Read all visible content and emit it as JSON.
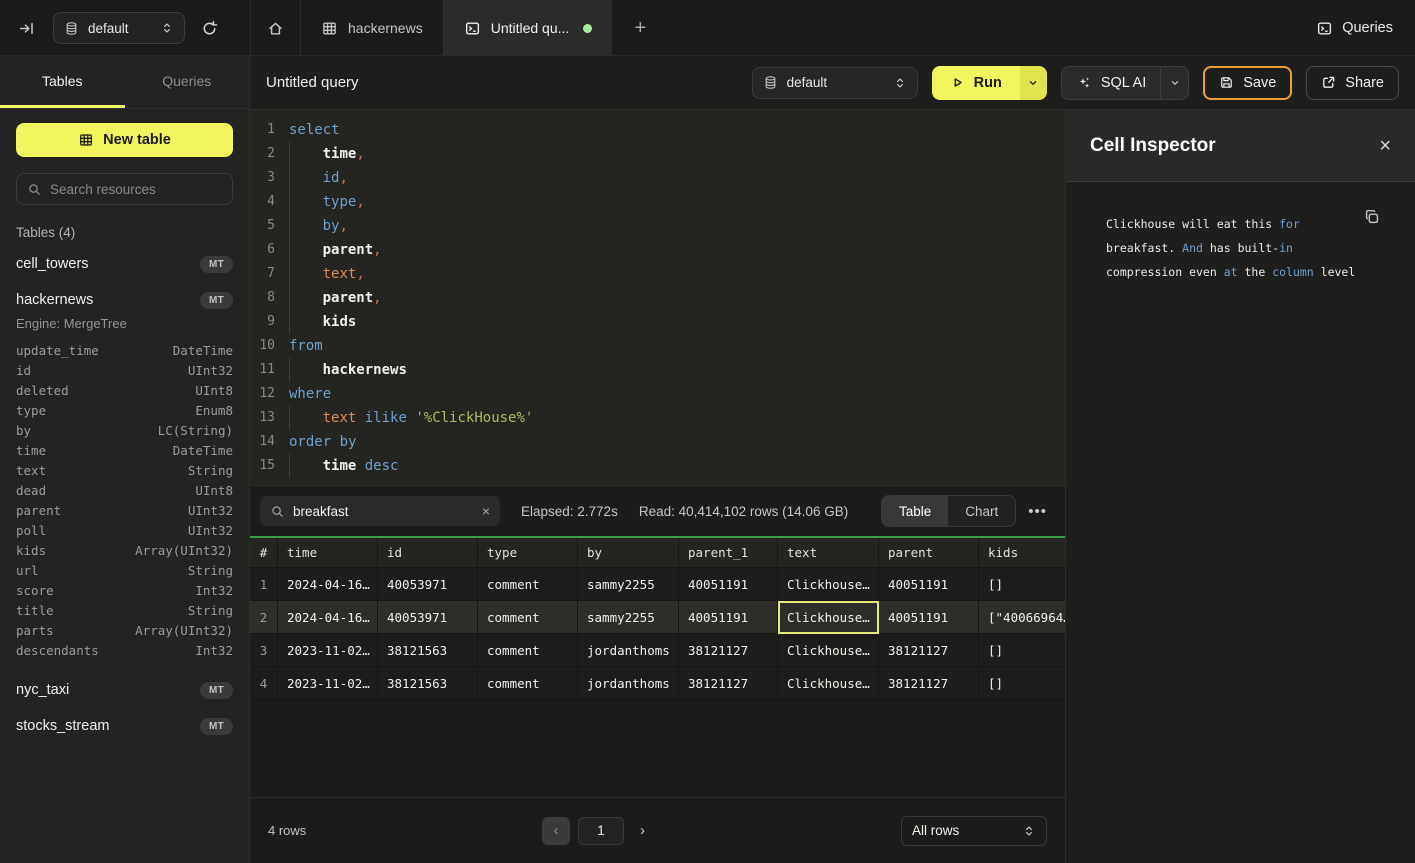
{
  "colors": {
    "accent_yellow": "#F2F65E",
    "accent_amber": "#E9A23B",
    "table_header_line_green": "#3F9B45",
    "unsaved_dot_green": "#A7E8A5",
    "selected_cell_yellow": "#E6EA7C",
    "syntax_keyword_blue": "#6FA0CE",
    "syntax_string_green": "#A6BD62",
    "syntax_identifier_orange": "#DC8A5C"
  },
  "topbar": {
    "database_selector": {
      "value": "default"
    },
    "tabs": [
      {
        "name": "home",
        "icon": "home",
        "label": ""
      },
      {
        "name": "hackernews",
        "icon": "table",
        "label": "hackernews"
      },
      {
        "name": "untitled-query",
        "icon": "terminal",
        "label": "Untitled qu...",
        "active": true,
        "unsaved": true
      }
    ],
    "new_tab_label": "+",
    "queries_label": "Queries"
  },
  "sidebar": {
    "tabs": [
      {
        "label": "Tables",
        "active": true
      },
      {
        "label": "Queries",
        "active": false
      }
    ],
    "new_table_label": "New table",
    "search_placeholder": "Search resources",
    "section_label": "Tables (4)",
    "tables": [
      {
        "name": "cell_towers",
        "badge": "MT"
      },
      {
        "name": "hackernews",
        "badge": "MT",
        "expanded": true,
        "engine": "Engine: MergeTree",
        "columns": [
          {
            "name": "update_time",
            "type": "DateTime"
          },
          {
            "name": "id",
            "type": "UInt32"
          },
          {
            "name": "deleted",
            "type": "UInt8"
          },
          {
            "name": "type",
            "type": "Enum8"
          },
          {
            "name": "by",
            "type": "LC(String)"
          },
          {
            "name": "time",
            "type": "DateTime"
          },
          {
            "name": "text",
            "type": "String"
          },
          {
            "name": "dead",
            "type": "UInt8"
          },
          {
            "name": "parent",
            "type": "UInt32"
          },
          {
            "name": "poll",
            "type": "UInt32"
          },
          {
            "name": "kids",
            "type": "Array(UInt32)"
          },
          {
            "name": "url",
            "type": "String"
          },
          {
            "name": "score",
            "type": "Int32"
          },
          {
            "name": "title",
            "type": "String"
          },
          {
            "name": "parts",
            "type": "Array(UInt32)"
          },
          {
            "name": "descendants",
            "type": "Int32"
          }
        ]
      },
      {
        "name": "nyc_taxi",
        "badge": "MT"
      },
      {
        "name": "stocks_stream",
        "badge": "MT"
      }
    ]
  },
  "query_header": {
    "title": "Untitled query",
    "database_selector": {
      "value": "default"
    },
    "run_label": "Run",
    "sql_ai_label": "SQL AI",
    "save_label": "Save",
    "share_label": "Share"
  },
  "editor": {
    "lines": [
      {
        "n": "1",
        "indent": 0,
        "tokens": [
          {
            "t": "select",
            "c": "kw"
          }
        ]
      },
      {
        "n": "2",
        "indent": 1,
        "tokens": [
          {
            "t": "time",
            "c": "col"
          },
          {
            "t": ",",
            "c": "pn"
          }
        ]
      },
      {
        "n": "3",
        "indent": 1,
        "tokens": [
          {
            "t": "id",
            "c": "kw"
          },
          {
            "t": ",",
            "c": "pn"
          }
        ]
      },
      {
        "n": "4",
        "indent": 1,
        "tokens": [
          {
            "t": "type",
            "c": "kw"
          },
          {
            "t": ",",
            "c": "pn"
          }
        ]
      },
      {
        "n": "5",
        "indent": 1,
        "tokens": [
          {
            "t": "by",
            "c": "kw"
          },
          {
            "t": ",",
            "c": "pn"
          }
        ]
      },
      {
        "n": "6",
        "indent": 1,
        "tokens": [
          {
            "t": "parent",
            "c": "col"
          },
          {
            "t": ",",
            "c": "pn"
          }
        ]
      },
      {
        "n": "7",
        "indent": 1,
        "tokens": [
          {
            "t": "text",
            "c": "fn"
          },
          {
            "t": ",",
            "c": "pn"
          }
        ]
      },
      {
        "n": "8",
        "indent": 1,
        "tokens": [
          {
            "t": "parent",
            "c": "col"
          },
          {
            "t": ",",
            "c": "pn"
          }
        ]
      },
      {
        "n": "9",
        "indent": 1,
        "tokens": [
          {
            "t": "kids",
            "c": "col"
          }
        ]
      },
      {
        "n": "10",
        "indent": 0,
        "tokens": [
          {
            "t": "from",
            "c": "kw"
          }
        ]
      },
      {
        "n": "11",
        "indent": 1,
        "tokens": [
          {
            "t": "hackernews",
            "c": "col"
          }
        ]
      },
      {
        "n": "12",
        "indent": 0,
        "tokens": [
          {
            "t": "where",
            "c": "kw"
          }
        ]
      },
      {
        "n": "13",
        "indent": 1,
        "tokens": [
          {
            "t": "text",
            "c": "fn"
          },
          {
            "t": " ",
            "c": "sp"
          },
          {
            "t": "ilike",
            "c": "kw"
          },
          {
            "t": " ",
            "c": "sp"
          },
          {
            "t": "'%ClickHouse%'",
            "c": "str"
          }
        ]
      },
      {
        "n": "14",
        "indent": 0,
        "tokens": [
          {
            "t": "order by",
            "c": "kw"
          }
        ]
      },
      {
        "n": "15",
        "indent": 1,
        "tokens": [
          {
            "t": "time",
            "c": "col"
          },
          {
            "t": " ",
            "c": "sp"
          },
          {
            "t": "desc",
            "c": "kw"
          }
        ]
      }
    ]
  },
  "results": {
    "search_value": "breakfast",
    "elapsed": "Elapsed: 2.772s",
    "read": "Read: 40,414,102 rows (14.06 GB)",
    "views": [
      {
        "label": "Table",
        "active": true
      },
      {
        "label": "Chart",
        "active": false
      }
    ],
    "more_label": "•••",
    "columns": [
      "#",
      "time",
      "id",
      "type",
      "by",
      "parent_1",
      "text",
      "parent",
      "kids"
    ],
    "rows": [
      {
        "cells": [
          "1",
          "2024-04-16…",
          "40053971",
          "comment",
          "sammy2255",
          "40051191",
          "Clickhouse…",
          "40051191",
          "[]"
        ]
      },
      {
        "cells": [
          "2",
          "2024-04-16…",
          "40053971",
          "comment",
          "sammy2255",
          "40051191",
          "Clickhouse…",
          "40051191",
          "[\"40066964…"
        ],
        "selected": true,
        "selected_cell": 6
      },
      {
        "cells": [
          "3",
          "2023-11-02…",
          "38121563",
          "comment",
          "jordanthoms",
          "38121127",
          "Clickhouse…",
          "38121127",
          "[]"
        ]
      },
      {
        "cells": [
          "4",
          "2023-11-02…",
          "38121563",
          "comment",
          "jordanthoms",
          "38121127",
          "Clickhouse…",
          "38121127",
          "[]"
        ]
      }
    ],
    "footer": {
      "count_label": "4 rows",
      "prev_label": "‹",
      "page": "1",
      "next_label": "›",
      "page_size": "All rows"
    }
  },
  "inspector": {
    "title": "Cell Inspector",
    "content_tokens": [
      {
        "t": "Clickhouse will eat this ",
        "c": "w"
      },
      {
        "t": "for",
        "c": "k"
      },
      {
        "t": " breakfast. ",
        "c": "w"
      },
      {
        "t": "And",
        "c": "k"
      },
      {
        "t": " has built-",
        "c": "w"
      },
      {
        "t": "in",
        "c": "k"
      },
      {
        "t": " compression even ",
        "c": "w"
      },
      {
        "t": "at",
        "c": "k"
      },
      {
        "t": " the ",
        "c": "w"
      },
      {
        "t": "column",
        "c": "k"
      },
      {
        "t": " level",
        "c": "w"
      }
    ]
  }
}
